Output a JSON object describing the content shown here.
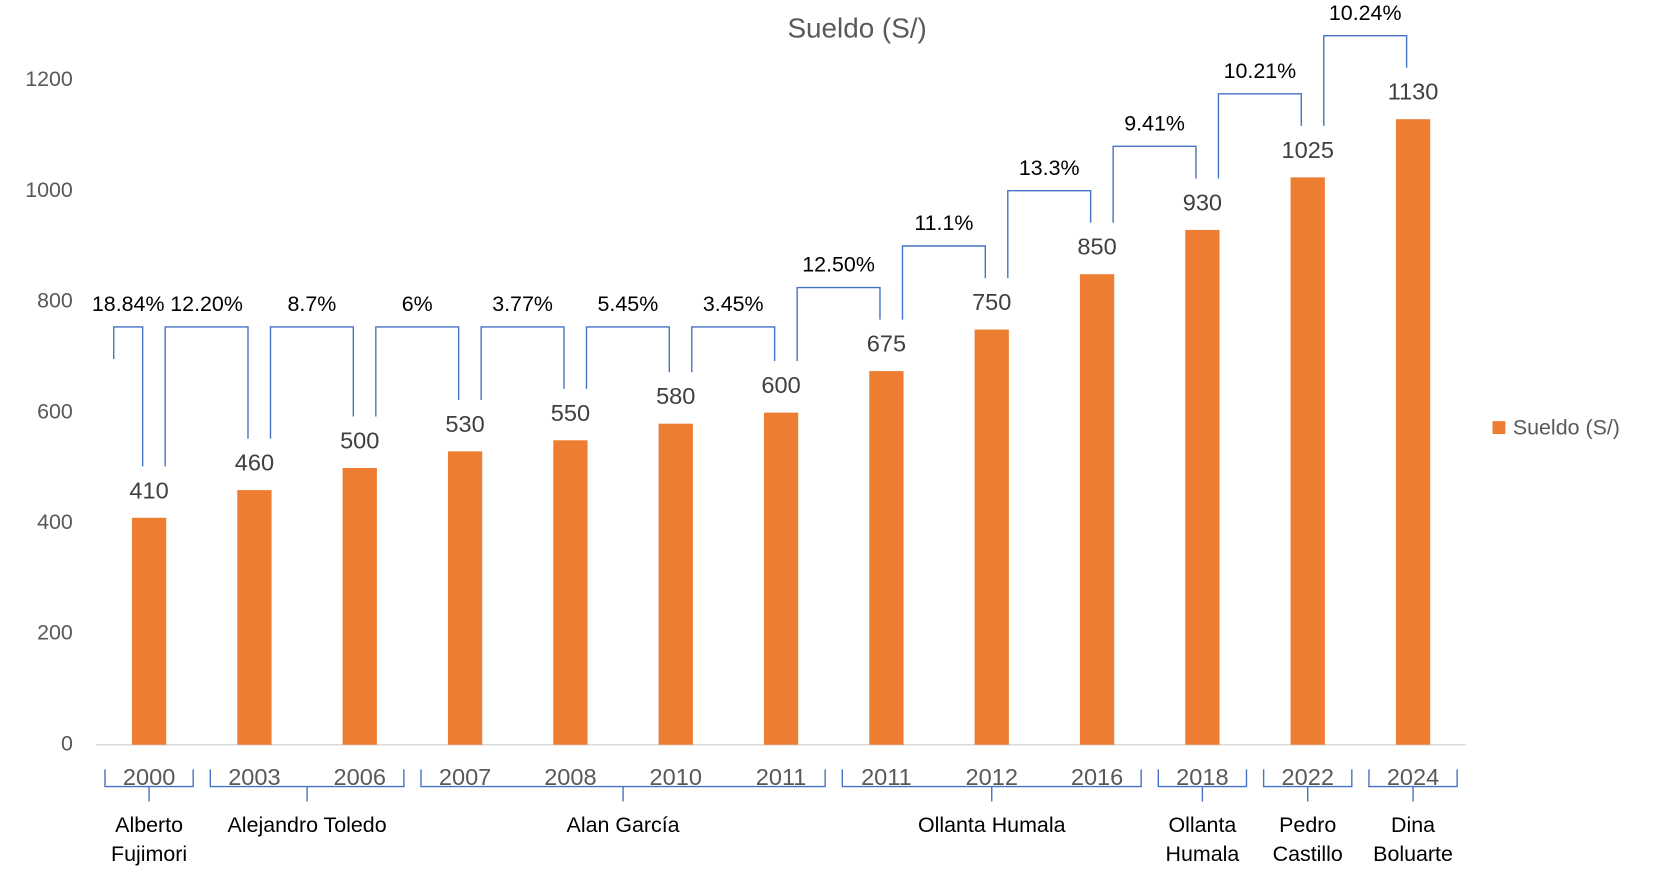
{
  "chart_data": {
    "type": "bar",
    "title": "Sueldo (S/)",
    "categories": [
      "2000",
      "2003",
      "2006",
      "2007",
      "2008",
      "2010",
      "2011",
      "2011",
      "2012",
      "2016",
      "2018",
      "2022",
      "2024"
    ],
    "series": [
      {
        "name": "Sueldo (S/)",
        "color": "#ed7d31",
        "values": [
          410,
          460,
          500,
          530,
          550,
          580,
          600,
          675,
          750,
          850,
          930,
          1025,
          1130
        ]
      }
    ],
    "ylim": [
      0,
      1200
    ],
    "yticks": [
      0,
      200,
      400,
      600,
      800,
      1000,
      1200
    ],
    "grid": false,
    "legend": "right",
    "annotations": [
      "18.84%",
      "12.20%",
      "8.7%",
      "6%",
      "3.77%",
      "5.45%",
      "3.45%",
      "12.50%",
      "11.1%",
      "13.3%",
      "9.41%",
      "10.21%",
      "10.24%"
    ],
    "groups": [
      {
        "label": [
          "Alberto",
          "Fujimori"
        ],
        "span": 1
      },
      {
        "label": [
          "Alejandro Toledo"
        ],
        "span": 2
      },
      {
        "label": [
          "Alan García"
        ],
        "span": 4
      },
      {
        "label": [
          "Ollanta Humala"
        ],
        "span": 3
      },
      {
        "label": [
          "Ollanta",
          "Humala"
        ],
        "span": 1
      },
      {
        "label": [
          "Pedro",
          "Castillo"
        ],
        "span": 1
      },
      {
        "label": [
          "Dina",
          "Boluarte"
        ],
        "span": 1
      }
    ]
  }
}
